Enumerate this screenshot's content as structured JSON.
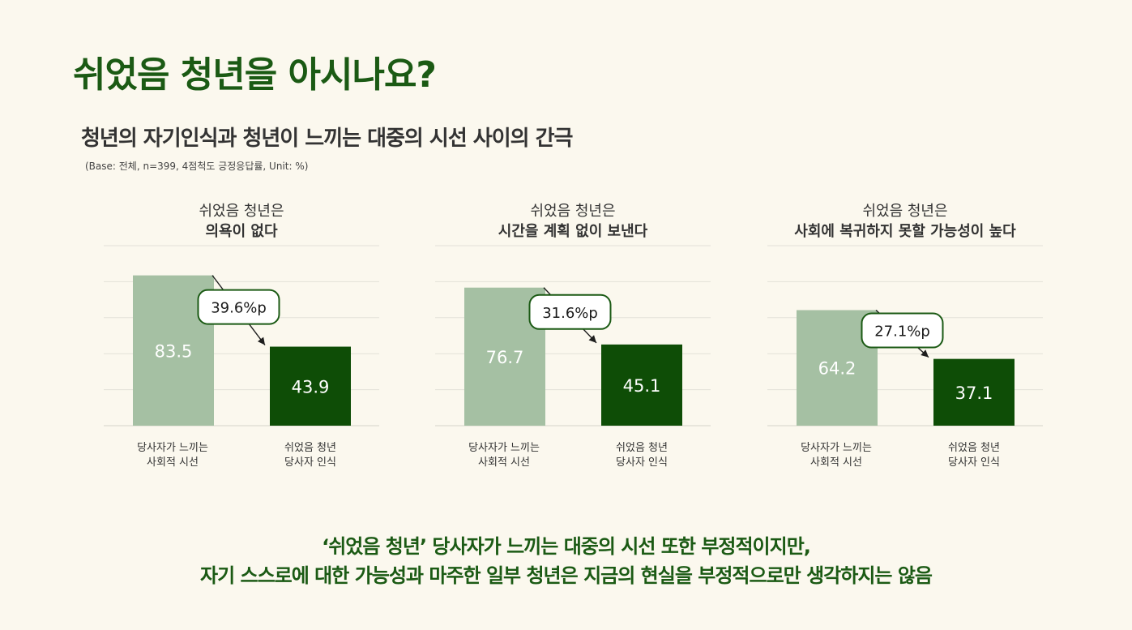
{
  "title": "쉬었음 청년을 아시나요?",
  "subtitle": "청년의 자기인식과 청년이 느끼는 대중의 시선 사이의 간극",
  "base_note": "(Base: 전체, n=399, 4점척도 긍정응답률, Unit: %)",
  "colors": {
    "light": "#a5c0a3",
    "dark": "#0e4d06",
    "accent": "#1b5a14"
  },
  "chart_data": [
    {
      "type": "bar",
      "title_line1": "쉬었음 청년은",
      "title_line2": "의욕이 없다",
      "categories": [
        [
          "당사자가 느끼는",
          "사회적 시선"
        ],
        [
          "쉬었음 청년",
          "당사자 인식"
        ]
      ],
      "values": [
        83.5,
        43.9
      ],
      "value_labels": [
        "83.5",
        "43.9"
      ],
      "gap_label": "39.6%p",
      "ylim": [
        0,
        100
      ],
      "grid": true
    },
    {
      "type": "bar",
      "title_line1": "쉬었음 청년은",
      "title_line2": "시간을 계획 없이 보낸다",
      "categories": [
        [
          "당사자가 느끼는",
          "사회적 시선"
        ],
        [
          "쉬었음 청년",
          "당사자 인식"
        ]
      ],
      "values": [
        76.7,
        45.1
      ],
      "value_labels": [
        "76.7",
        "45.1"
      ],
      "gap_label": "31.6%p",
      "ylim": [
        0,
        100
      ],
      "grid": true
    },
    {
      "type": "bar",
      "title_line1": "쉬었음 청년은",
      "title_line2": "사회에 복귀하지 못할 가능성이 높다",
      "categories": [
        [
          "당사자가 느끼는",
          "사회적 시선"
        ],
        [
          "쉬었음 청년",
          "당사자 인식"
        ]
      ],
      "values": [
        64.2,
        37.1
      ],
      "value_labels": [
        "64.2",
        "37.1"
      ],
      "gap_label": "27.1%p",
      "ylim": [
        0,
        100
      ],
      "grid": true
    }
  ],
  "conclusion": {
    "line1": "‘쉬었음 청년’ 당사자가 느끼는 대중의 시선 또한 부정적이지만,",
    "line2": "자기 스스로에 대한 가능성과 마주한 일부 청년은 지금의 현실을 부정적으로만 생각하지는 않음"
  }
}
